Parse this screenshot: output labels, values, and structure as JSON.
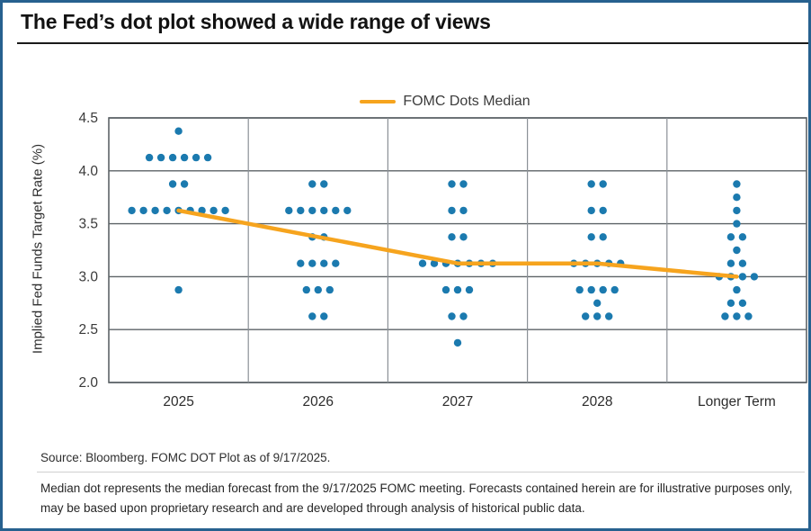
{
  "title": "The Fed’s dot plot showed a wide range of views",
  "legend": {
    "label": "FOMC Dots Median",
    "line_color": "#F6A41E"
  },
  "y_axis": {
    "title": "Implied Fed Funds Target Rate (%)",
    "ticks": [
      "4.5",
      "4.0",
      "3.5",
      "3.0",
      "2.5",
      "2.0"
    ]
  },
  "x_axis": {
    "labels": [
      "2025",
      "2026",
      "2027",
      "2028",
      "Longer Term"
    ]
  },
  "source": "Source: Bloomberg. FOMC DOT Plot as of 9/17/2025.",
  "footnote": "Median dot represents the median forecast from the 9/17/2025 FOMC meeting. Forecasts contained herein are for illustrative purposes only, may be based upon proprietary research and are developed through analysis of historical public data.",
  "colors": {
    "dot": "#1B7AAF",
    "median_line": "#F6A41E",
    "grid": "#5d6367",
    "column_line": "#8a9096",
    "card_border": "#27618F"
  },
  "chart_data": {
    "type": "scatter",
    "title": "The Fed’s dot plot showed a wide range of views",
    "xlabel": "",
    "ylabel": "Implied Fed Funds Target Rate (%)",
    "ylim": [
      2.0,
      4.5
    ],
    "ytick_step": 0.5,
    "grid": true,
    "legend_position": "top-center",
    "categories": [
      "2025",
      "2026",
      "2027",
      "2028",
      "Longer Term"
    ],
    "dot_columns": [
      {
        "category": "2025",
        "dots": [
          {
            "rate": 4.375,
            "count": 1
          },
          {
            "rate": 4.125,
            "count": 6
          },
          {
            "rate": 3.875,
            "count": 2
          },
          {
            "rate": 3.625,
            "count": 9
          },
          {
            "rate": 2.875,
            "count": 1
          }
        ]
      },
      {
        "category": "2026",
        "dots": [
          {
            "rate": 3.875,
            "count": 2
          },
          {
            "rate": 3.625,
            "count": 6
          },
          {
            "rate": 3.375,
            "count": 2
          },
          {
            "rate": 3.125,
            "count": 4
          },
          {
            "rate": 2.875,
            "count": 3
          },
          {
            "rate": 2.625,
            "count": 2
          }
        ]
      },
      {
        "category": "2027",
        "dots": [
          {
            "rate": 3.875,
            "count": 2
          },
          {
            "rate": 3.625,
            "count": 2
          },
          {
            "rate": 3.375,
            "count": 2
          },
          {
            "rate": 3.125,
            "count": 7
          },
          {
            "rate": 2.875,
            "count": 3
          },
          {
            "rate": 2.625,
            "count": 2
          },
          {
            "rate": 2.375,
            "count": 1
          }
        ]
      },
      {
        "category": "2028",
        "dots": [
          {
            "rate": 3.875,
            "count": 2
          },
          {
            "rate": 3.625,
            "count": 2
          },
          {
            "rate": 3.375,
            "count": 2
          },
          {
            "rate": 3.125,
            "count": 5
          },
          {
            "rate": 2.875,
            "count": 4
          },
          {
            "rate": 2.75,
            "count": 1
          },
          {
            "rate": 2.625,
            "count": 3
          }
        ]
      },
      {
        "category": "Longer Term",
        "dots": [
          {
            "rate": 3.875,
            "count": 1
          },
          {
            "rate": 3.75,
            "count": 1
          },
          {
            "rate": 3.625,
            "count": 1
          },
          {
            "rate": 3.5,
            "count": 1
          },
          {
            "rate": 3.375,
            "count": 2
          },
          {
            "rate": 3.25,
            "count": 1
          },
          {
            "rate": 3.125,
            "count": 2
          },
          {
            "rate": 3.0,
            "count": 4
          },
          {
            "rate": 2.875,
            "count": 1
          },
          {
            "rate": 2.75,
            "count": 2
          },
          {
            "rate": 2.625,
            "count": 3
          }
        ]
      }
    ],
    "series": [
      {
        "name": "FOMC Dots Median",
        "type": "line",
        "x": [
          "2025",
          "2026",
          "2027",
          "2028",
          "Longer Term"
        ],
        "values": [
          3.625,
          3.375,
          3.125,
          3.125,
          3.0
        ]
      }
    ]
  }
}
